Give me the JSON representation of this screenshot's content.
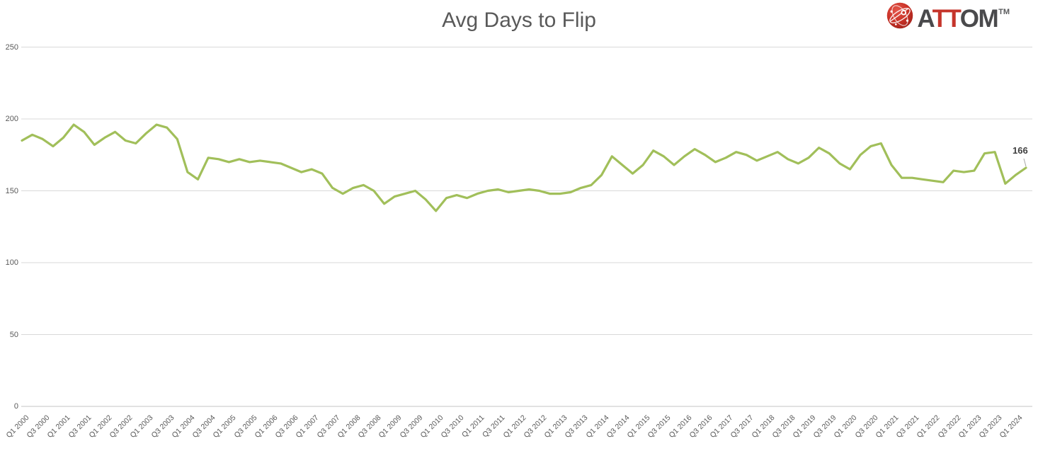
{
  "header": {
    "logo": {
      "part_a": "A",
      "part_tt": "TT",
      "part_om": "OM",
      "trademark": "TM",
      "icon": "attom-globe-icon"
    }
  },
  "colors": {
    "line": "#a1bf5a",
    "grid": "#d9d9d9",
    "axis_line": "#c6c6c6",
    "axis_text": "#595959",
    "title_text": "#595959",
    "end_label_text": "#3f3f3f",
    "leader_line": "#a6a6a6",
    "logo_red": "#c5352b",
    "logo_dark_gray": "#4a4a4c"
  },
  "chart_data": {
    "type": "line",
    "title": "Avg Days to Flip",
    "legend": "none",
    "grid": "horizontal",
    "ylim": [
      0,
      250
    ],
    "yticks": [
      0,
      50,
      100,
      150,
      200,
      250
    ],
    "x_tick_every": 2,
    "x": [
      "Q1 2000",
      "Q2 2000",
      "Q3 2000",
      "Q4 2000",
      "Q1 2001",
      "Q2 2001",
      "Q3 2001",
      "Q4 2001",
      "Q1 2002",
      "Q2 2002",
      "Q3 2002",
      "Q4 2002",
      "Q1 2003",
      "Q2 2003",
      "Q3 2003",
      "Q4 2003",
      "Q1 2004",
      "Q2 2004",
      "Q3 2004",
      "Q4 2004",
      "Q1 2005",
      "Q2 2005",
      "Q3 2005",
      "Q4 2005",
      "Q1 2006",
      "Q2 2006",
      "Q3 2006",
      "Q4 2006",
      "Q1 2007",
      "Q2 2007",
      "Q3 2007",
      "Q4 2007",
      "Q1 2008",
      "Q2 2008",
      "Q3 2008",
      "Q4 2008",
      "Q1 2009",
      "Q2 2009",
      "Q3 2009",
      "Q4 2009",
      "Q1 2010",
      "Q2 2010",
      "Q3 2010",
      "Q4 2010",
      "Q1 2011",
      "Q2 2011",
      "Q3 2011",
      "Q4 2011",
      "Q1 2012",
      "Q2 2012",
      "Q3 2012",
      "Q4 2012",
      "Q1 2013",
      "Q2 2013",
      "Q3 2013",
      "Q4 2013",
      "Q1 2014",
      "Q2 2014",
      "Q3 2014",
      "Q4 2014",
      "Q1 2015",
      "Q2 2015",
      "Q3 2015",
      "Q4 2015",
      "Q1 2016",
      "Q2 2016",
      "Q3 2016",
      "Q4 2016",
      "Q1 2017",
      "Q2 2017",
      "Q3 2017",
      "Q4 2017",
      "Q1 2018",
      "Q2 2018",
      "Q3 2018",
      "Q4 2018",
      "Q1 2019",
      "Q2 2019",
      "Q3 2019",
      "Q4 2019",
      "Q1 2020",
      "Q2 2020",
      "Q3 2020",
      "Q4 2020",
      "Q1 2021",
      "Q2 2021",
      "Q3 2021",
      "Q4 2021",
      "Q1 2022",
      "Q2 2022",
      "Q3 2022",
      "Q4 2022",
      "Q1 2023",
      "Q2 2023",
      "Q3 2023",
      "Q4 2023",
      "Q1 2024",
      "Q2 2024"
    ],
    "values": [
      185,
      189,
      186,
      181,
      187,
      196,
      191,
      182,
      187,
      191,
      185,
      183,
      190,
      196,
      194,
      186,
      163,
      158,
      173,
      172,
      170,
      172,
      170,
      171,
      170,
      169,
      166,
      163,
      165,
      162,
      152,
      148,
      152,
      154,
      150,
      141,
      146,
      148,
      150,
      144,
      136,
      145,
      147,
      145,
      148,
      150,
      151,
      149,
      150,
      151,
      150,
      148,
      148,
      149,
      152,
      154,
      161,
      174,
      168,
      162,
      168,
      178,
      174,
      168,
      174,
      179,
      175,
      170,
      173,
      177,
      175,
      171,
      174,
      177,
      172,
      169,
      173,
      180,
      176,
      169,
      165,
      175,
      181,
      183,
      168,
      159,
      159,
      158,
      157,
      156,
      164,
      163,
      164,
      176,
      177,
      155,
      161,
      166
    ],
    "end_label": {
      "text": "166",
      "value": 166
    }
  }
}
